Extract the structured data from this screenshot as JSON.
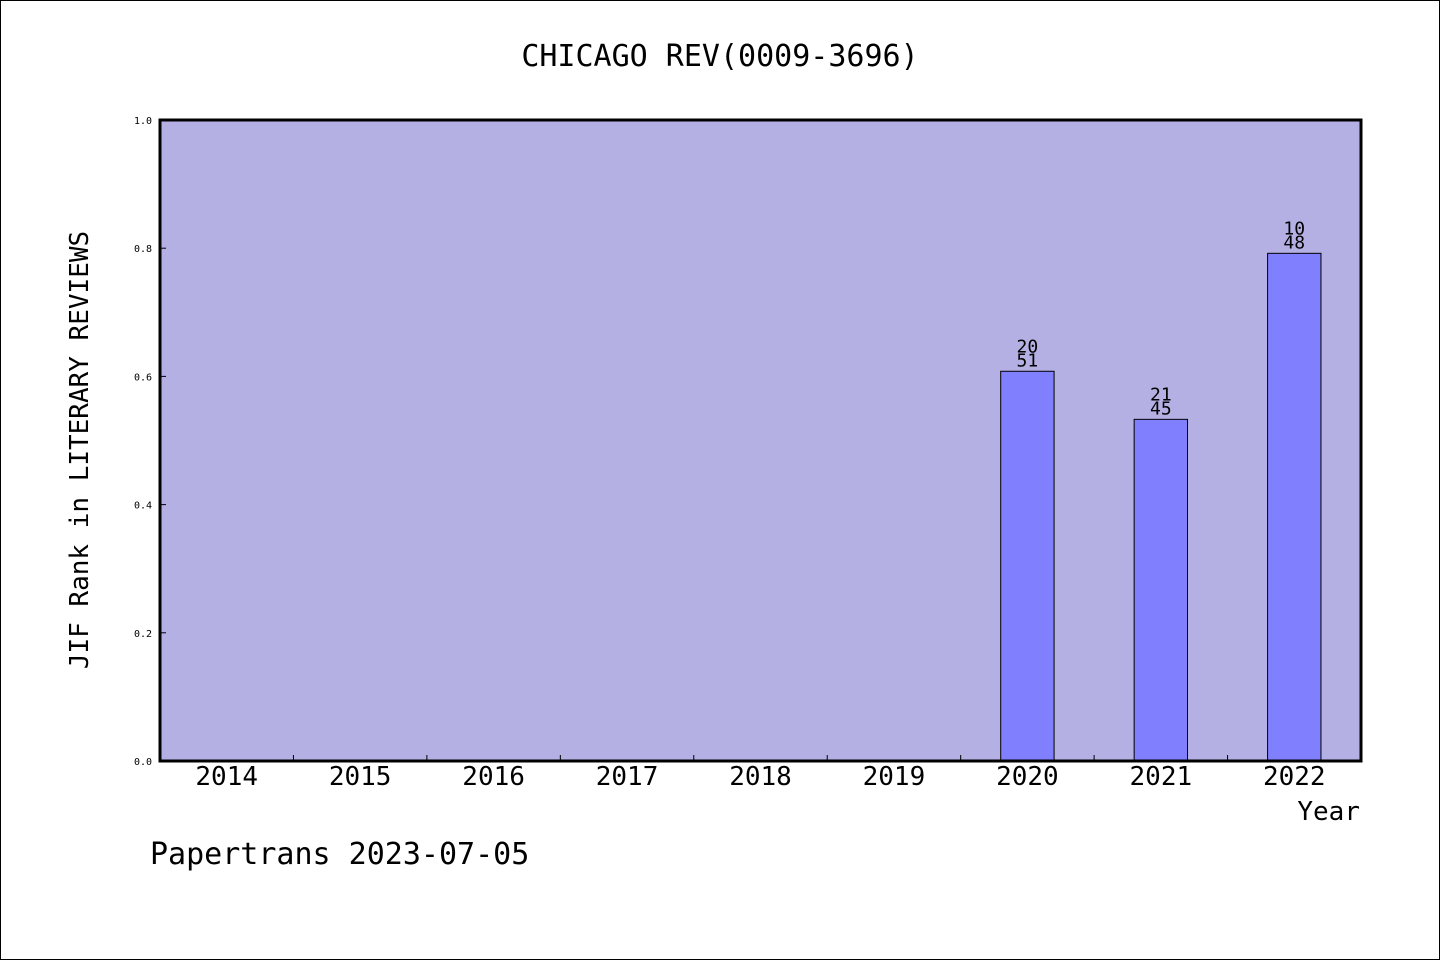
{
  "chart_data": {
    "type": "bar",
    "title": "CHICAGO REV(0009-3696)",
    "xlabel": "Year",
    "ylabel": "JIF Rank in LITERARY REVIEWS",
    "ylim": [
      0,
      1.0
    ],
    "yticks": [
      "0.0",
      "0.2",
      "0.4",
      "0.6",
      "0.8",
      "1.0"
    ],
    "categories": [
      "2014",
      "2015",
      "2016",
      "2017",
      "2018",
      "2019",
      "2020",
      "2021",
      "2022"
    ],
    "values": [
      null,
      null,
      null,
      null,
      null,
      null,
      0.608,
      0.533,
      0.792
    ],
    "labels": [
      null,
      null,
      null,
      null,
      null,
      null,
      {
        "rank": "20",
        "total": "51"
      },
      {
        "rank": "21",
        "total": "45"
      },
      {
        "rank": "10",
        "total": "48"
      }
    ],
    "grid": false,
    "colors": {
      "plot_bg": "#b5b0e3",
      "bar": "#8080ff"
    }
  },
  "footer": "Papertrans 2023-07-05"
}
